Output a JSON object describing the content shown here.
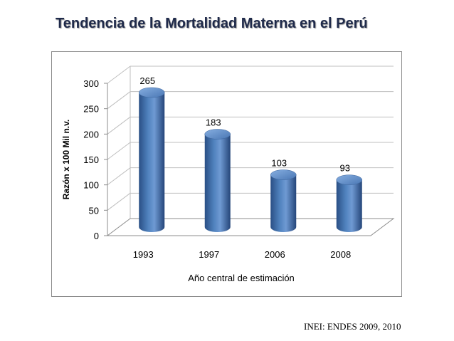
{
  "title": "Tendencia de la Mortalidad Materna en el Perú",
  "source": "INEI: ENDES 2009, 2010",
  "colors": {
    "bar": "#4f81bd",
    "bar_dark": "#2a4f85",
    "bar_light": "#7aa3d8",
    "grid": "#bfbfbf",
    "text": "#000000"
  },
  "chart_data": {
    "type": "bar",
    "categories": [
      "1993",
      "1997",
      "2006",
      "2008"
    ],
    "values": [
      265,
      183,
      103,
      93
    ],
    "data_labels": [
      "265",
      "183",
      "103",
      "93"
    ],
    "title": "Tendencia de la Mortalidad Materna en el Perú",
    "xlabel": "Año central de estimación",
    "ylabel": "Razón x 100 Mil n.v.",
    "ylim": [
      0,
      300
    ],
    "yticks": [
      "0",
      "50",
      "100",
      "150",
      "200",
      "250",
      "300"
    ],
    "grid": true,
    "legend": "none",
    "style": "3d-cylinder"
  }
}
